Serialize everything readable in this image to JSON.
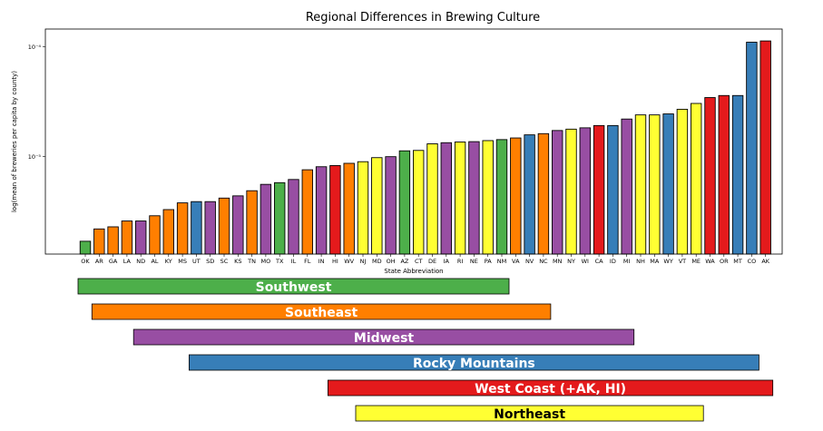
{
  "chart_data": {
    "type": "bar",
    "title": "Regional Differences in Brewing Culture",
    "xlabel": "State Abbreviation",
    "ylabel": "log(mean of breweries per capita by county)",
    "yscale": "log",
    "ylim": [
      1.3e-06,
      0.000145
    ],
    "yticks": [
      1e-05,
      0.0001
    ],
    "ytick_labels": [
      "10⁻⁵",
      "10⁻⁴"
    ],
    "categories": [
      "OK",
      "AR",
      "GA",
      "LA",
      "ND",
      "AL",
      "KY",
      "MS",
      "UT",
      "SD",
      "SC",
      "KS",
      "TN",
      "MO",
      "TX",
      "IL",
      "FL",
      "IN",
      "HI",
      "WV",
      "NJ",
      "MD",
      "OH",
      "AZ",
      "CT",
      "DE",
      "IA",
      "RI",
      "NE",
      "PA",
      "NM",
      "VA",
      "NV",
      "NC",
      "MN",
      "NY",
      "WI",
      "CA",
      "ID",
      "MI",
      "NH",
      "MA",
      "WY",
      "VT",
      "ME",
      "WA",
      "OR",
      "MT",
      "CO",
      "AK"
    ],
    "values": [
      1.7e-06,
      2.2e-06,
      2.3e-06,
      2.6e-06,
      2.6e-06,
      2.9e-06,
      3.3e-06,
      3.8e-06,
      3.9e-06,
      3.9e-06,
      4.2e-06,
      4.4e-06,
      4.9e-06,
      5.6e-06,
      5.8e-06,
      6.2e-06,
      7.6e-06,
      8.1e-06,
      8.3e-06,
      8.7e-06,
      9e-06,
      9.8e-06,
      1e-05,
      1.13e-05,
      1.14e-05,
      1.31e-05,
      1.34e-05,
      1.36e-05,
      1.37e-05,
      1.4e-05,
      1.43e-05,
      1.48e-05,
      1.58e-05,
      1.62e-05,
      1.73e-05,
      1.78e-05,
      1.83e-05,
      1.92e-05,
      1.92e-05,
      2.2e-05,
      2.4e-05,
      2.4e-05,
      2.45e-05,
      2.7e-05,
      3.05e-05,
      3.45e-05,
      3.6e-05,
      3.6e-05,
      0.00011,
      0.000113
    ],
    "bar_regions": [
      "Southwest",
      "Southeast",
      "Southeast",
      "Southeast",
      "Midwest",
      "Southeast",
      "Southeast",
      "Southeast",
      "Rocky Mountains",
      "Midwest",
      "Southeast",
      "Midwest",
      "Southeast",
      "Midwest",
      "Southwest",
      "Midwest",
      "Southeast",
      "Midwest",
      "West Coast (+AK, HI)",
      "Southeast",
      "Northeast",
      "Northeast",
      "Midwest",
      "Southwest",
      "Northeast",
      "Northeast",
      "Midwest",
      "Northeast",
      "Midwest",
      "Northeast",
      "Southwest",
      "Southeast",
      "Rocky Mountains",
      "Southeast",
      "Midwest",
      "Northeast",
      "Midwest",
      "West Coast (+AK, HI)",
      "Rocky Mountains",
      "Midwest",
      "Northeast",
      "Northeast",
      "Rocky Mountains",
      "Northeast",
      "Northeast",
      "West Coast (+AK, HI)",
      "West Coast (+AK, HI)",
      "Rocky Mountains",
      "Rocky Mountains",
      "West Coast (+AK, HI)"
    ],
    "regions": [
      {
        "name": "Southwest",
        "color": "#4daf4a",
        "text_color": "#ffffff",
        "from": "OK",
        "to": "NM"
      },
      {
        "name": "Southeast",
        "color": "#ff7f00",
        "text_color": "#ffffff",
        "from": "AR",
        "to": "NC"
      },
      {
        "name": "Midwest",
        "color": "#984ea3",
        "text_color": "#ffffff",
        "from": "ND",
        "to": "MI"
      },
      {
        "name": "Rocky Mountains",
        "color": "#377eb8",
        "text_color": "#ffffff",
        "from": "UT",
        "to": "CO"
      },
      {
        "name": "West Coast (+AK, HI)",
        "color": "#e41a1c",
        "text_color": "#ffffff",
        "from": "HI",
        "to": "AK"
      },
      {
        "name": "Northeast",
        "color": "#ffff33",
        "text_color": "#000000",
        "from": "NJ",
        "to": "ME"
      }
    ]
  }
}
